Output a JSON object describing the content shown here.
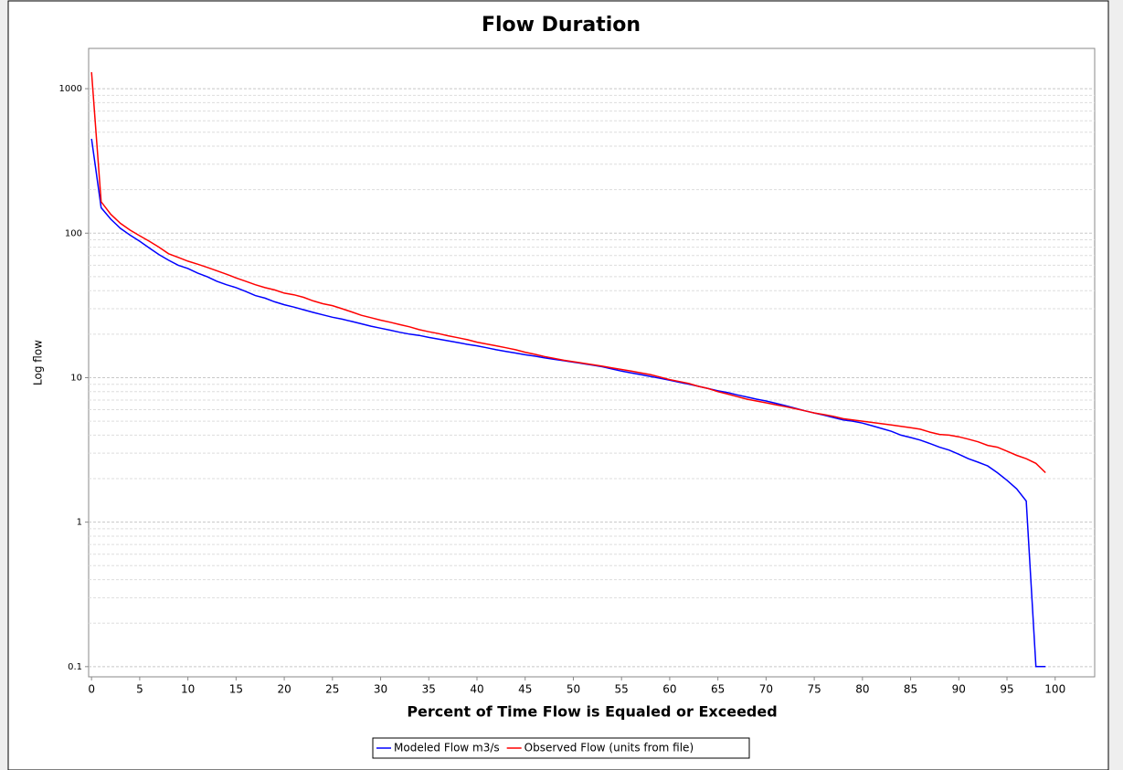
{
  "chart_data": {
    "type": "line",
    "title": "Flow Duration",
    "xlabel": "Percent of Time Flow is Equaled or Exceeded",
    "ylabel": "Log flow",
    "log_y": true,
    "grid": "y",
    "legend": "bottom",
    "xlim": [
      -0.3,
      104.1
    ],
    "ylim": [
      0.085,
      1900
    ],
    "xticks": [
      0,
      5,
      10,
      15,
      20,
      25,
      30,
      35,
      40,
      45,
      50,
      55,
      60,
      65,
      70,
      75,
      80,
      85,
      90,
      95,
      100
    ],
    "yticks": [
      0.1,
      1,
      10,
      100,
      1000
    ],
    "y_minor_ticks": [
      0.2,
      0.3,
      0.4,
      0.5,
      0.6,
      0.7,
      0.8,
      0.9,
      2,
      3,
      4,
      5,
      6,
      7,
      8,
      9,
      20,
      30,
      40,
      50,
      60,
      70,
      80,
      90,
      200,
      300,
      400,
      500,
      600,
      700,
      800,
      900
    ],
    "x": [
      0,
      1,
      2,
      3,
      4,
      5,
      6,
      7,
      8,
      9,
      10,
      11,
      12,
      13,
      14,
      15,
      16,
      17,
      18,
      19,
      20,
      21,
      22,
      23,
      24,
      25,
      26,
      27,
      28,
      29,
      30,
      31,
      32,
      33,
      34,
      35,
      36,
      37,
      38,
      39,
      40,
      41,
      42,
      43,
      44,
      45,
      46,
      47,
      48,
      49,
      50,
      51,
      52,
      53,
      54,
      55,
      56,
      57,
      58,
      59,
      60,
      61,
      62,
      63,
      64,
      65,
      66,
      67,
      68,
      69,
      70,
      71,
      72,
      73,
      74,
      75,
      76,
      77,
      78,
      79,
      80,
      81,
      82,
      83,
      84,
      85,
      86,
      87,
      88,
      89,
      90,
      91,
      92,
      93,
      94,
      95,
      96,
      97,
      98,
      99
    ],
    "series": [
      {
        "name": "Modeled Flow m3/s",
        "color": "#0000ff",
        "values": [
          450,
          150,
          125,
          108,
          97,
          88,
          79,
          71,
          65,
          60,
          57,
          53,
          50,
          46.5,
          44,
          42,
          39.5,
          37,
          35.5,
          33.5,
          32,
          30.8,
          29.5,
          28.3,
          27.2,
          26.2,
          25.4,
          24.5,
          23.6,
          22.7,
          22,
          21.3,
          20.6,
          20,
          19.6,
          19,
          18.5,
          18,
          17.5,
          17,
          16.6,
          16.1,
          15.6,
          15.2,
          14.8,
          14.4,
          14.1,
          13.7,
          13.4,
          13.1,
          12.8,
          12.5,
          12.2,
          11.9,
          11.5,
          11.1,
          10.8,
          10.5,
          10.2,
          9.9,
          9.6,
          9.3,
          9.0,
          8.7,
          8.4,
          8.1,
          7.9,
          7.6,
          7.35,
          7.1,
          6.9,
          6.65,
          6.4,
          6.15,
          5.9,
          5.7,
          5.5,
          5.3,
          5.1,
          5.0,
          4.85,
          4.65,
          4.45,
          4.25,
          4.0,
          3.85,
          3.7,
          3.5,
          3.3,
          3.15,
          2.95,
          2.75,
          2.6,
          2.45,
          2.2,
          1.95,
          1.7,
          1.4,
          0.1,
          0.1
        ]
      },
      {
        "name": "Observed Flow (units from file)",
        "color": "#ff0000",
        "values": [
          1300,
          165,
          135,
          117,
          105,
          96,
          88,
          80,
          72,
          68,
          64,
          61,
          58,
          55,
          52,
          49,
          46.5,
          44,
          42,
          40.5,
          38.5,
          37.5,
          36,
          34,
          32.5,
          31.5,
          30,
          28.5,
          27,
          26,
          25,
          24.2,
          23.3,
          22.5,
          21.5,
          20.8,
          20.2,
          19.5,
          18.9,
          18.3,
          17.6,
          17.1,
          16.6,
          16.1,
          15.6,
          15.0,
          14.5,
          14.0,
          13.6,
          13.2,
          12.9,
          12.6,
          12.3,
          12.0,
          11.7,
          11.4,
          11.1,
          10.8,
          10.5,
          10.1,
          9.7,
          9.4,
          9.1,
          8.7,
          8.4,
          8.0,
          7.7,
          7.4,
          7.1,
          6.9,
          6.7,
          6.5,
          6.3,
          6.1,
          5.9,
          5.7,
          5.55,
          5.4,
          5.2,
          5.1,
          5.0,
          4.9,
          4.8,
          4.7,
          4.6,
          4.5,
          4.4,
          4.2,
          4.05,
          4.0,
          3.9,
          3.75,
          3.6,
          3.4,
          3.3,
          3.1,
          2.9,
          2.75,
          2.55,
          2.2
        ]
      }
    ]
  }
}
